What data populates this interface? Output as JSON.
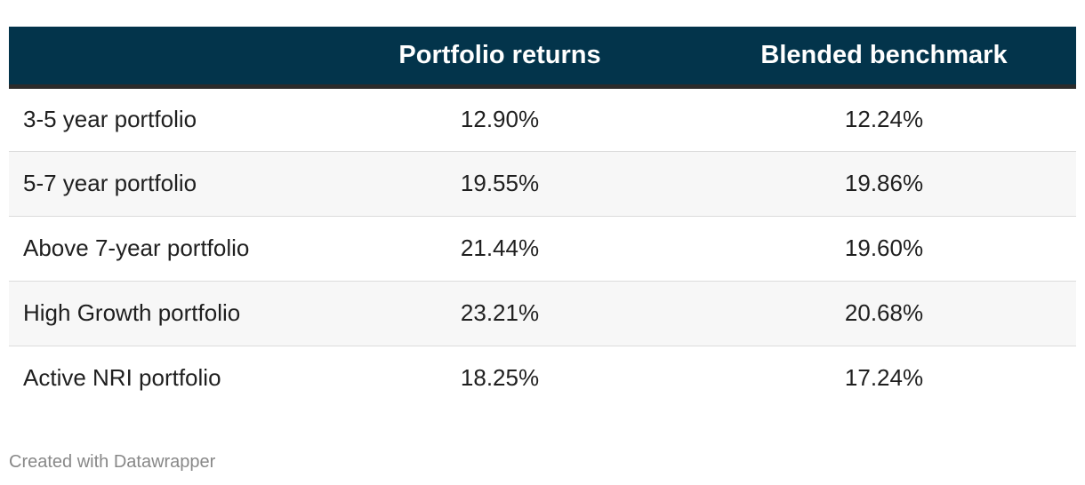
{
  "chart_data": {
    "type": "table",
    "columns": [
      "",
      "Portfolio returns",
      "Blended benchmark"
    ],
    "rows": [
      {
        "label": "3-5 year portfolio",
        "portfolio_returns": "12.90%",
        "blended_benchmark": "12.24%"
      },
      {
        "label": "5-7 year portfolio",
        "portfolio_returns": "19.55%",
        "blended_benchmark": "19.86%"
      },
      {
        "label": "Above 7-year portfolio",
        "portfolio_returns": "21.44%",
        "blended_benchmark": "19.60%"
      },
      {
        "label": "High Growth portfolio",
        "portfolio_returns": "23.21%",
        "blended_benchmark": "20.68%"
      },
      {
        "label": "Active NRI portfolio",
        "portfolio_returns": "18.25%",
        "blended_benchmark": "17.24%"
      }
    ]
  },
  "footer": "Created with Datawrapper",
  "colors": {
    "header_background": "#03344b",
    "header_text": "#ffffff",
    "alt_row_background": "#f7f7f7"
  }
}
